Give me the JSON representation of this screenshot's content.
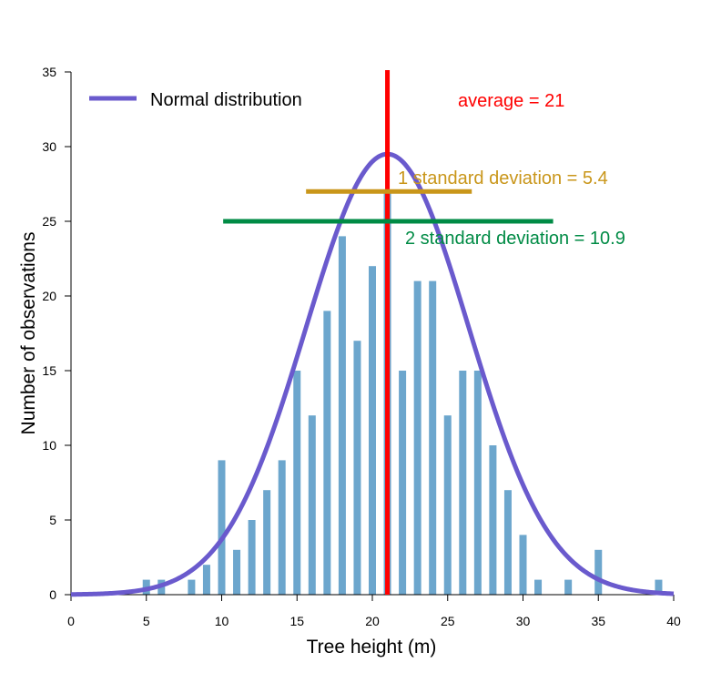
{
  "chart_data": {
    "type": "bar",
    "xlabel": "Tree height (m)",
    "ylabel": "Number of observations",
    "xlim": [
      0,
      40
    ],
    "ylim": [
      0,
      35
    ],
    "x_ticks": [
      "0",
      "5",
      "10",
      "15",
      "20",
      "25",
      "30",
      "35",
      "40"
    ],
    "y_ticks": [
      "0",
      "5",
      "10",
      "15",
      "20",
      "25",
      "30",
      "35"
    ],
    "grid": false,
    "legend_position": "top-left",
    "bars": {
      "color": "#6ca6cd",
      "x": [
        5,
        6,
        8,
        9,
        10,
        11,
        12,
        13,
        14,
        15,
        16,
        17,
        18,
        19,
        20,
        21,
        22,
        23,
        24,
        25,
        26,
        27,
        28,
        29,
        30,
        31,
        33,
        35,
        39
      ],
      "values": [
        1,
        1,
        1,
        2,
        9,
        3,
        5,
        7,
        9,
        15,
        12,
        19,
        24,
        17,
        22,
        27,
        15,
        21,
        21,
        12,
        15,
        15,
        10,
        7,
        4,
        1,
        1,
        3,
        1
      ]
    },
    "normal_curve": {
      "name": "Normal distribution",
      "color": "#6a5acd",
      "mean": 21,
      "sd": 5.4,
      "peak": 29.5
    },
    "average_line": {
      "x": 21,
      "label": "average = 21",
      "color": "#ff0000"
    },
    "sd1_line": {
      "x_start": 15.6,
      "x_end": 26.6,
      "y": 27,
      "label": "1 standard deviation = 5.4",
      "color": "#c9961a"
    },
    "sd2_line": {
      "x_start": 10.1,
      "x_end": 32,
      "y": 25,
      "label": "2 standard deviation = 10.9",
      "color": "#008b45"
    }
  }
}
